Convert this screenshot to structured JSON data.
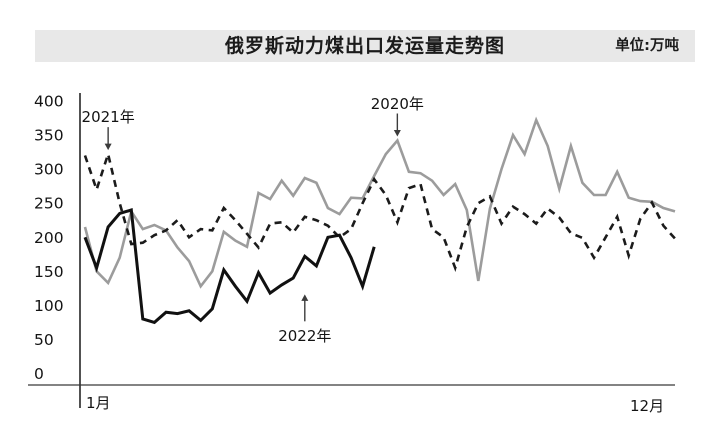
{
  "header": {
    "title": "俄罗斯动力煤出口发运量走势图",
    "unit_label": "单位:万吨"
  },
  "chart_data": {
    "type": "line",
    "title": "俄罗斯动力煤出口发运量走势图",
    "unit": "万吨",
    "grid": false,
    "legend": "inline-annotations",
    "x_axis": {
      "start_label": "1月",
      "end_label": "12月",
      "description": "weekly points from January to December",
      "range_weeks": [
        1,
        52
      ]
    },
    "y_axis": {
      "ticks": [
        400,
        350,
        300,
        250,
        200,
        150,
        100,
        50,
        0
      ],
      "range": [
        0,
        400
      ]
    },
    "series": [
      {
        "name": "2020年",
        "style": "solid",
        "color": "#9c9c9c",
        "width": 2.6,
        "values": [
          215,
          150,
          133,
          170,
          238,
          212,
          218,
          210,
          185,
          165,
          128,
          150,
          208,
          195,
          186,
          265,
          256,
          283,
          261,
          287,
          280,
          243,
          234,
          258,
          257,
          290,
          322,
          342,
          296,
          294,
          283,
          262,
          278,
          240,
          136,
          242,
          300,
          350,
          322,
          372,
          334,
          271,
          334,
          280,
          262,
          262,
          296,
          258,
          253,
          252,
          243,
          238
        ]
      },
      {
        "name": "2021年",
        "style": "dashed",
        "color": "#1b1b1b",
        "width": 2.6,
        "values": [
          320,
          270,
          322,
          250,
          190,
          192,
          203,
          210,
          225,
          200,
          212,
          210,
          243,
          225,
          205,
          185,
          220,
          222,
          207,
          230,
          225,
          217,
          200,
          212,
          250,
          285,
          262,
          222,
          272,
          278,
          212,
          200,
          155,
          215,
          250,
          260,
          220,
          245,
          234,
          220,
          242,
          229,
          206,
          199,
          170,
          200,
          230,
          173,
          227,
          251,
          217,
          198
        ]
      },
      {
        "name": "2022年",
        "style": "solid",
        "color": "#111111",
        "width": 3,
        "values": [
          200,
          155,
          215,
          235,
          240,
          80,
          75,
          90,
          88,
          92,
          78,
          95,
          152,
          128,
          106,
          148,
          118,
          130,
          140,
          172,
          158,
          200,
          203,
          170,
          128,
          186
        ]
      }
    ],
    "annotations": [
      {
        "label": "2021年",
        "series": "2021年",
        "week": 3,
        "direction": "down"
      },
      {
        "label": "2020年",
        "series": "2020年",
        "week": 28,
        "direction": "down"
      },
      {
        "label": "2022年",
        "series": "2022年",
        "week": 20,
        "direction": "up"
      }
    ]
  }
}
